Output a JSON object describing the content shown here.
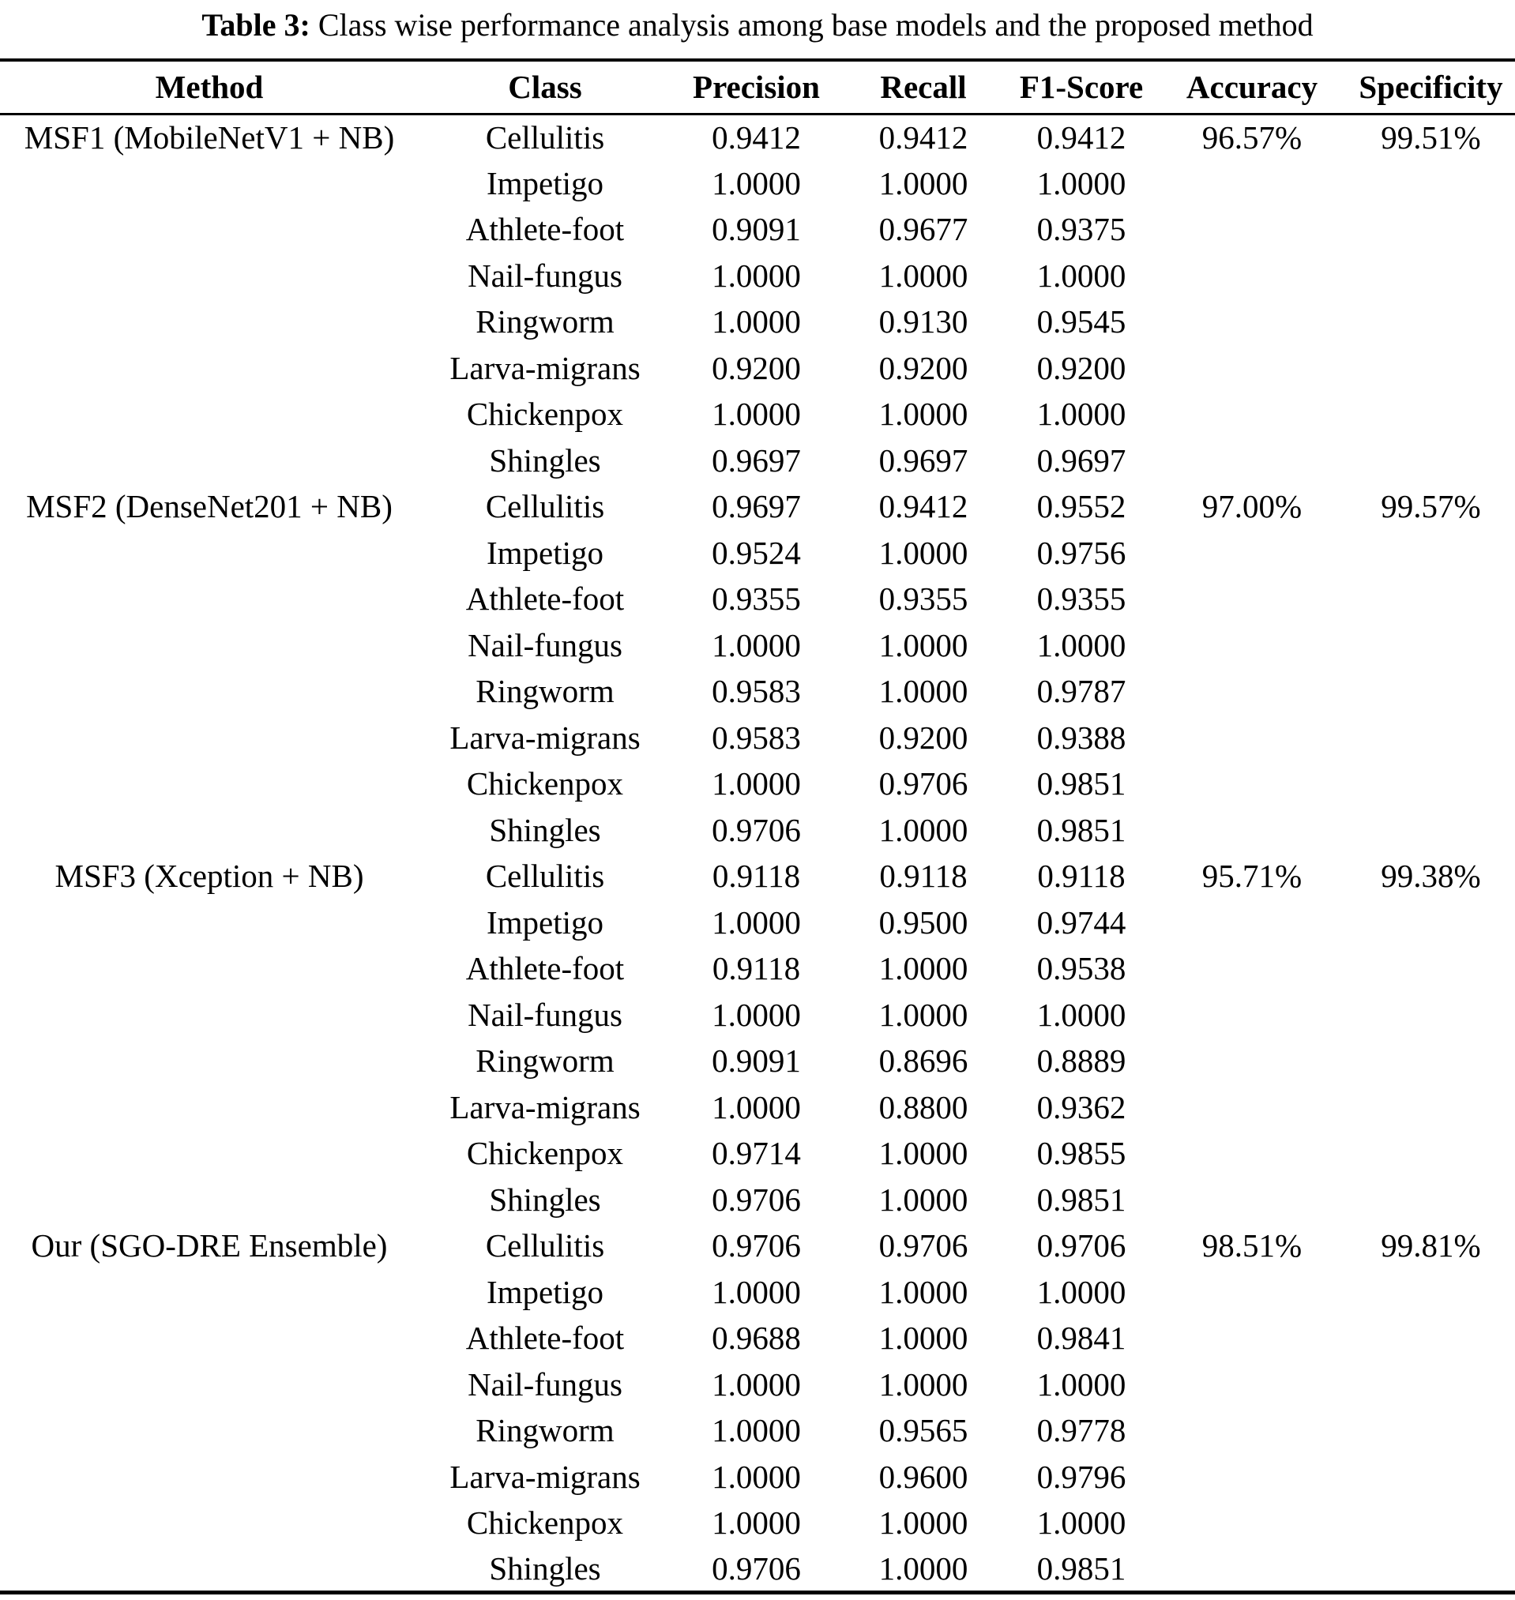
{
  "title": {
    "label": "Table 3:",
    "text": " Class wise performance analysis among base models and the proposed method"
  },
  "colors": {
    "text": "#000000",
    "background": "#ffffff",
    "rule": "#000000"
  },
  "columns": [
    "Method",
    "Class",
    "Precision",
    "Recall",
    "F1-Score",
    "Accuracy",
    "Specificity"
  ],
  "chart_data": {
    "type": "table",
    "title": "Table 3: Class wise performance analysis among base models and the proposed method",
    "columns": [
      "Method",
      "Class",
      "Precision",
      "Recall",
      "F1-Score",
      "Accuracy",
      "Specificity"
    ]
  },
  "groups": [
    {
      "method": "MSF1 (MobileNetV1 + NB)",
      "accuracy": "96.57%",
      "specificity": "99.51%",
      "rows": [
        {
          "class": "Cellulitis",
          "precision": "0.9412",
          "recall": "0.9412",
          "f1": "0.9412"
        },
        {
          "class": "Impetigo",
          "precision": "1.0000",
          "recall": "1.0000",
          "f1": "1.0000"
        },
        {
          "class": "Athlete-foot",
          "precision": "0.9091",
          "recall": "0.9677",
          "f1": "0.9375"
        },
        {
          "class": "Nail-fungus",
          "precision": "1.0000",
          "recall": "1.0000",
          "f1": "1.0000"
        },
        {
          "class": "Ringworm",
          "precision": "1.0000",
          "recall": "0.9130",
          "f1": "0.9545"
        },
        {
          "class": "Larva-migrans",
          "precision": "0.9200",
          "recall": "0.9200",
          "f1": "0.9200"
        },
        {
          "class": "Chickenpox",
          "precision": "1.0000",
          "recall": "1.0000",
          "f1": "1.0000"
        },
        {
          "class": "Shingles",
          "precision": "0.9697",
          "recall": "0.9697",
          "f1": "0.9697"
        }
      ]
    },
    {
      "method": "MSF2 (DenseNet201 + NB)",
      "accuracy": "97.00%",
      "specificity": "99.57%",
      "rows": [
        {
          "class": "Cellulitis",
          "precision": "0.9697",
          "recall": "0.9412",
          "f1": "0.9552"
        },
        {
          "class": "Impetigo",
          "precision": "0.9524",
          "recall": "1.0000",
          "f1": "0.9756"
        },
        {
          "class": "Athlete-foot",
          "precision": "0.9355",
          "recall": "0.9355",
          "f1": "0.9355"
        },
        {
          "class": "Nail-fungus",
          "precision": "1.0000",
          "recall": "1.0000",
          "f1": "1.0000"
        },
        {
          "class": "Ringworm",
          "precision": "0.9583",
          "recall": "1.0000",
          "f1": "0.9787"
        },
        {
          "class": "Larva-migrans",
          "precision": "0.9583",
          "recall": "0.9200",
          "f1": "0.9388"
        },
        {
          "class": "Chickenpox",
          "precision": "1.0000",
          "recall": "0.9706",
          "f1": "0.9851"
        },
        {
          "class": "Shingles",
          "precision": "0.9706",
          "recall": "1.0000",
          "f1": "0.9851"
        }
      ]
    },
    {
      "method": "MSF3 (Xception + NB)",
      "accuracy": "95.71%",
      "specificity": "99.38%",
      "rows": [
        {
          "class": "Cellulitis",
          "precision": "0.9118",
          "recall": "0.9118",
          "f1": "0.9118"
        },
        {
          "class": "Impetigo",
          "precision": "1.0000",
          "recall": "0.9500",
          "f1": "0.9744"
        },
        {
          "class": "Athlete-foot",
          "precision": "0.9118",
          "recall": "1.0000",
          "f1": "0.9538"
        },
        {
          "class": "Nail-fungus",
          "precision": "1.0000",
          "recall": "1.0000",
          "f1": "1.0000"
        },
        {
          "class": "Ringworm",
          "precision": "0.9091",
          "recall": "0.8696",
          "f1": "0.8889"
        },
        {
          "class": "Larva-migrans",
          "precision": "1.0000",
          "recall": "0.8800",
          "f1": "0.9362"
        },
        {
          "class": "Chickenpox",
          "precision": "0.9714",
          "recall": "1.0000",
          "f1": "0.9855"
        },
        {
          "class": "Shingles",
          "precision": "0.9706",
          "recall": "1.0000",
          "f1": "0.9851"
        }
      ]
    },
    {
      "method": "Our (SGO-DRE Ensemble)",
      "accuracy": "98.51%",
      "specificity": "99.81%",
      "rows": [
        {
          "class": "Cellulitis",
          "precision": "0.9706",
          "recall": "0.9706",
          "f1": "0.9706"
        },
        {
          "class": "Impetigo",
          "precision": "1.0000",
          "recall": "1.0000",
          "f1": "1.0000"
        },
        {
          "class": "Athlete-foot",
          "precision": "0.9688",
          "recall": "1.0000",
          "f1": "0.9841"
        },
        {
          "class": "Nail-fungus",
          "precision": "1.0000",
          "recall": "1.0000",
          "f1": "1.0000"
        },
        {
          "class": "Ringworm",
          "precision": "1.0000",
          "recall": "0.9565",
          "f1": "0.9778"
        },
        {
          "class": "Larva-migrans",
          "precision": "1.0000",
          "recall": "0.9600",
          "f1": "0.9796"
        },
        {
          "class": "Chickenpox",
          "precision": "1.0000",
          "recall": "1.0000",
          "f1": "1.0000"
        },
        {
          "class": "Shingles",
          "precision": "0.9706",
          "recall": "1.0000",
          "f1": "0.9851"
        }
      ]
    }
  ]
}
